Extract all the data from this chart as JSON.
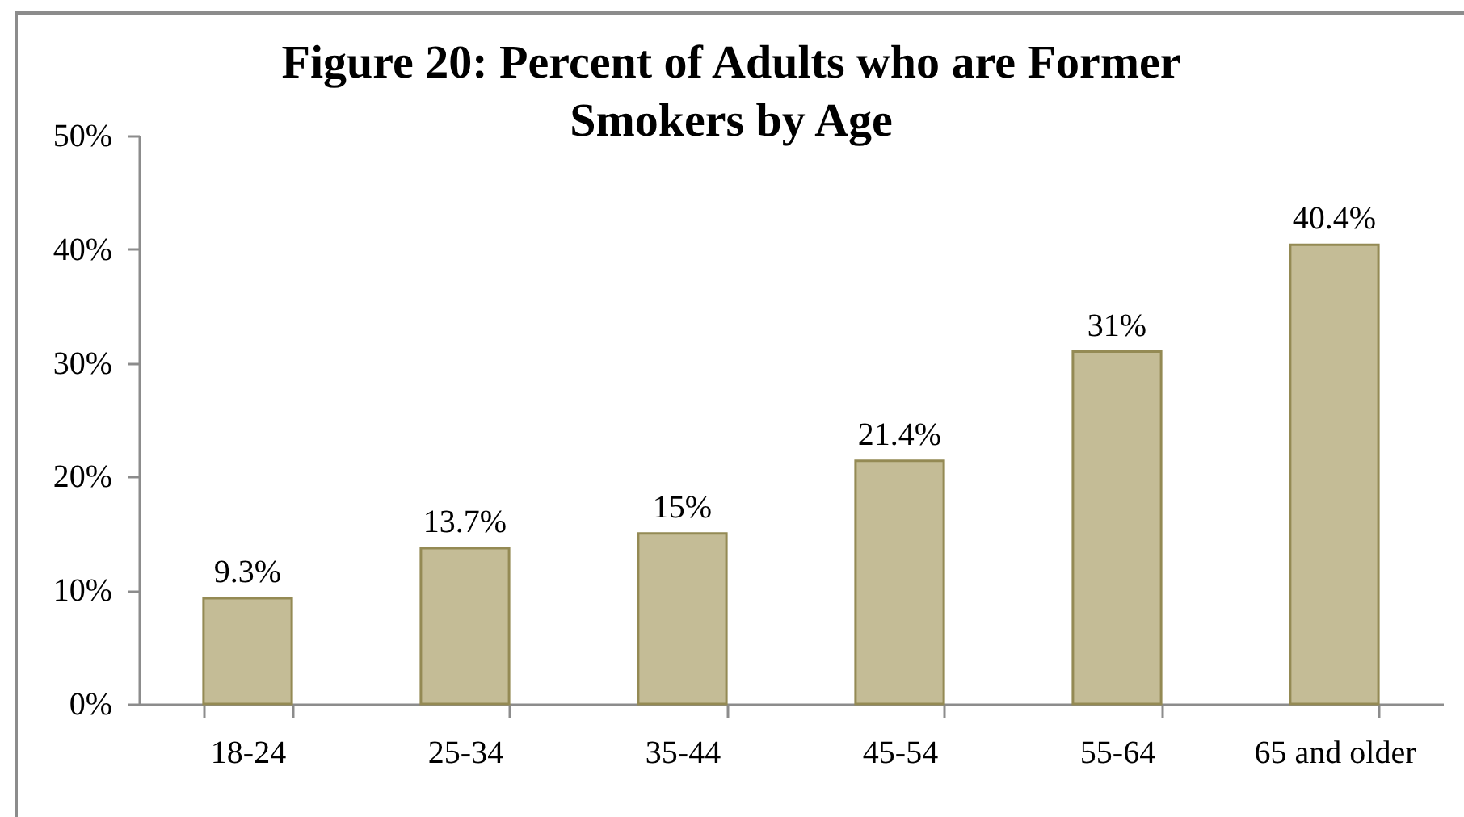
{
  "chart_data": {
    "type": "bar",
    "title": "Figure 20: Percent of Adults who are Former Smokers by Age",
    "categories": [
      "18-24",
      "25-34",
      "35-44",
      "45-54",
      "55-64",
      "65 and older"
    ],
    "values": [
      9.3,
      13.7,
      15,
      21.4,
      31,
      40.4
    ],
    "value_labels": [
      "9.3%",
      "13.7%",
      "15%",
      "21.4%",
      "31%",
      "40.4%"
    ],
    "color": "#c4bc96",
    "ylim": [
      0,
      50
    ],
    "yticks": [
      {
        "value": 0,
        "label": "0%"
      },
      {
        "value": 10,
        "label": "10%"
      },
      {
        "value": 20,
        "label": "20%"
      },
      {
        "value": 30,
        "label": "30%"
      },
      {
        "value": 40,
        "label": "40%"
      },
      {
        "value": 50,
        "label": "50%"
      }
    ]
  }
}
